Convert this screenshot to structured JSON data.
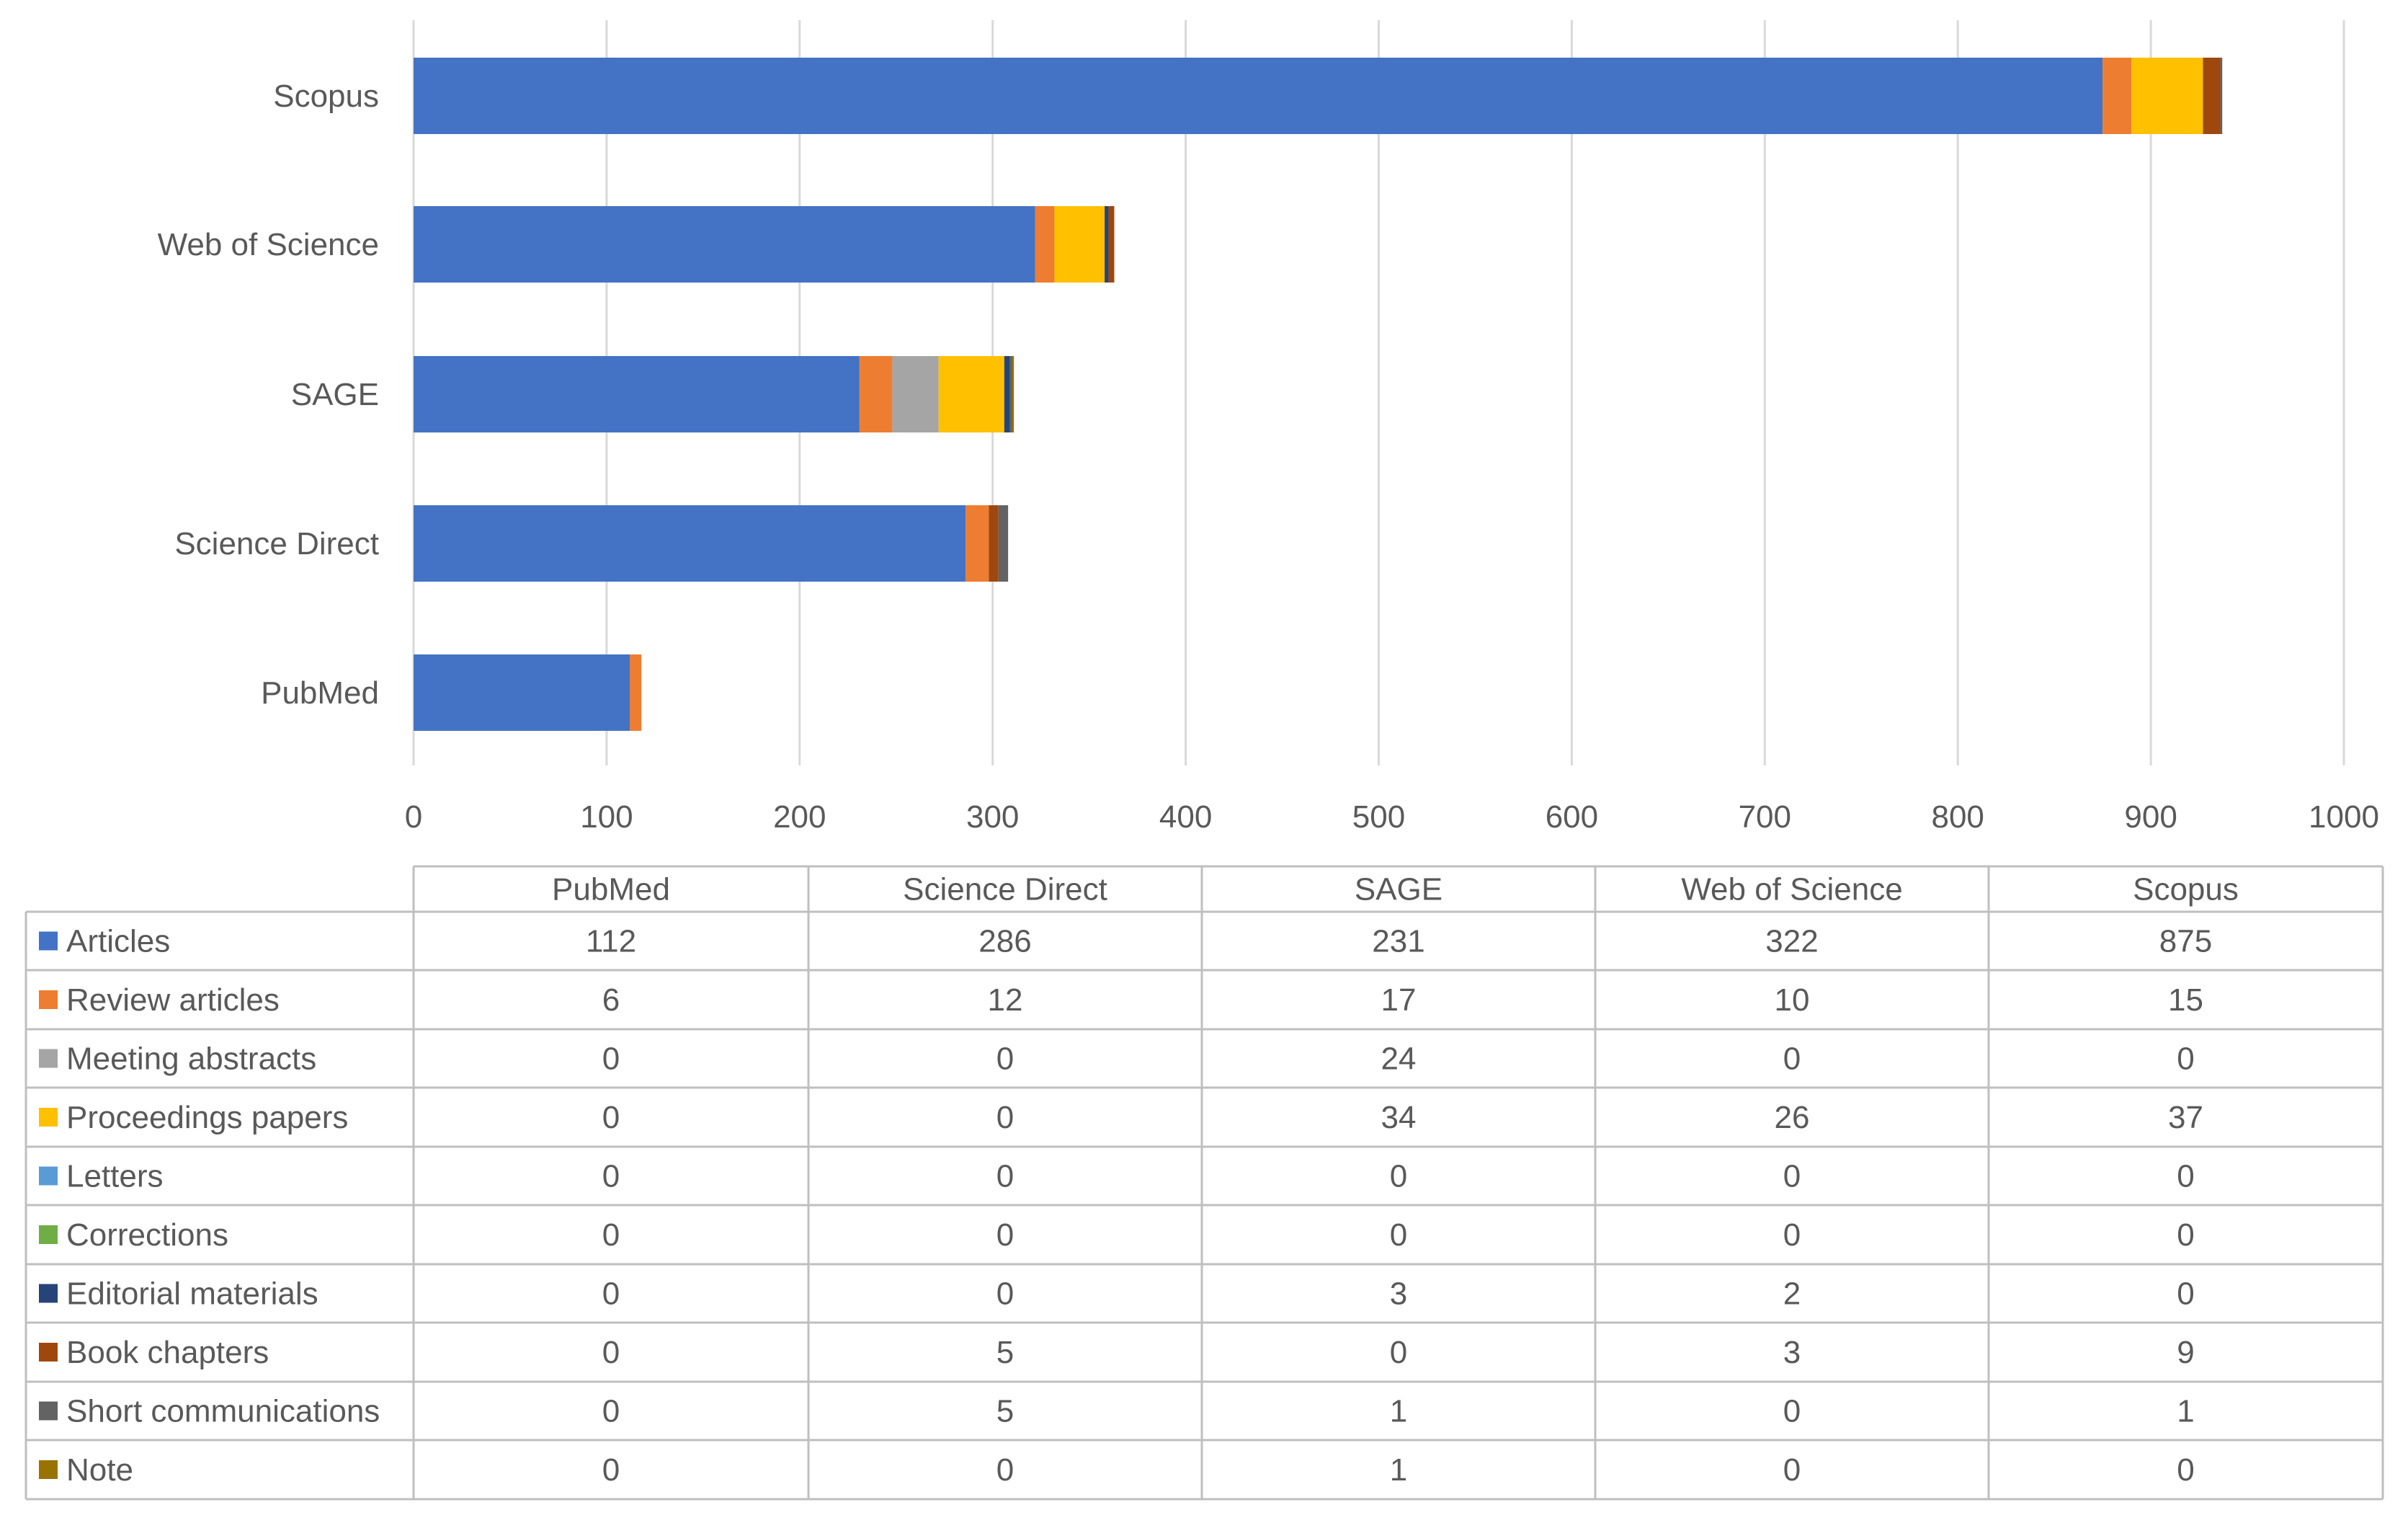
{
  "chart_data": {
    "type": "bar",
    "orientation": "horizontal",
    "stacked": true,
    "title": "",
    "xlabel": "",
    "ylabel": "",
    "xlim": [
      0,
      1000
    ],
    "x_ticks": [
      0,
      100,
      200,
      300,
      400,
      500,
      600,
      700,
      800,
      900,
      1000
    ],
    "grid": true,
    "legend": "data-table-below",
    "categories": [
      "PubMed",
      "Science Direct",
      "SAGE",
      "Web of Science",
      "Scopus"
    ],
    "series": [
      {
        "name": "Articles",
        "color": "#4472C4",
        "values": [
          112,
          286,
          231,
          322,
          875
        ]
      },
      {
        "name": "Review articles",
        "color": "#ED7D31",
        "values": [
          6,
          12,
          17,
          10,
          15
        ]
      },
      {
        "name": "Meeting abstracts",
        "color": "#A5A5A5",
        "values": [
          0,
          0,
          24,
          0,
          0
        ]
      },
      {
        "name": "Proceedings papers",
        "color": "#FFC000",
        "values": [
          0,
          0,
          34,
          26,
          37
        ]
      },
      {
        "name": "Letters",
        "color": "#5B9BD5",
        "values": [
          0,
          0,
          0,
          0,
          0
        ]
      },
      {
        "name": "Corrections",
        "color": "#70AD47",
        "values": [
          0,
          0,
          0,
          0,
          0
        ]
      },
      {
        "name": "Editorial materials",
        "color": "#264478",
        "values": [
          0,
          0,
          3,
          2,
          0
        ]
      },
      {
        "name": "Book chapters",
        "color": "#9E480E",
        "values": [
          0,
          5,
          0,
          3,
          9
        ]
      },
      {
        "name": "Short communications",
        "color": "#636363",
        "values": [
          0,
          5,
          1,
          0,
          1
        ]
      },
      {
        "name": "Note",
        "color": "#997300",
        "values": [
          0,
          0,
          1,
          0,
          0
        ]
      }
    ]
  }
}
